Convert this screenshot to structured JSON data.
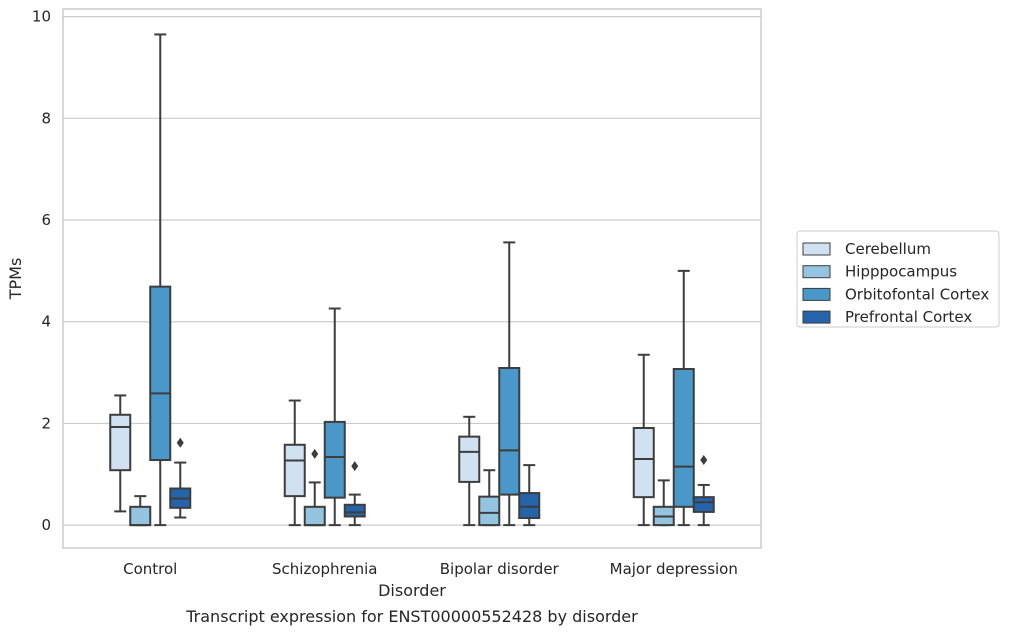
{
  "chart_data": {
    "type": "box",
    "caption": "Transcript expression for ENST00000552428 by disorder",
    "xlabel": "Disorder",
    "ylabel": "TPMs",
    "ylim": [
      -0.45,
      10.15
    ],
    "yticks": [
      0,
      2,
      4,
      6,
      8,
      10
    ],
    "grid": "horizontal",
    "legend_position": "right",
    "categories": [
      "Control",
      "Schizophrenia",
      "Bipolar disorder",
      "Major depression"
    ],
    "series": [
      {
        "name": "Cerebellum",
        "color": "#d0e1f2",
        "boxes": [
          {
            "whislo": 0.27,
            "q1": 1.08,
            "med": 1.93,
            "q3": 2.17,
            "whishi": 2.55,
            "fliers": []
          },
          {
            "whislo": 0.0,
            "q1": 0.57,
            "med": 1.27,
            "q3": 1.58,
            "whishi": 2.45,
            "fliers": []
          },
          {
            "whislo": 0.0,
            "q1": 0.85,
            "med": 1.44,
            "q3": 1.74,
            "whishi": 2.13,
            "fliers": []
          },
          {
            "whislo": 0.0,
            "q1": 0.55,
            "med": 1.3,
            "q3": 1.91,
            "whishi": 3.35,
            "fliers": []
          }
        ]
      },
      {
        "name": "Hipppocampus",
        "color": "#94c4df",
        "boxes": [
          {
            "whislo": 0.0,
            "q1": 0.0,
            "med": 0.0,
            "q3": 0.36,
            "whishi": 0.57,
            "fliers": []
          },
          {
            "whislo": 0.0,
            "q1": 0.0,
            "med": 0.0,
            "q3": 0.36,
            "whishi": 0.84,
            "fliers": [
              1.4
            ]
          },
          {
            "whislo": 0.0,
            "q1": 0.0,
            "med": 0.24,
            "q3": 0.56,
            "whishi": 1.08,
            "fliers": []
          },
          {
            "whislo": 0.0,
            "q1": 0.0,
            "med": 0.17,
            "q3": 0.36,
            "whishi": 0.88,
            "fliers": []
          }
        ]
      },
      {
        "name": "Orbitofontal Cortex",
        "color": "#4a98c9",
        "boxes": [
          {
            "whislo": 0.0,
            "q1": 1.28,
            "med": 2.59,
            "q3": 4.69,
            "whishi": 9.65,
            "fliers": []
          },
          {
            "whislo": 0.0,
            "q1": 0.54,
            "med": 1.34,
            "q3": 2.03,
            "whishi": 4.26,
            "fliers": []
          },
          {
            "whislo": 0.0,
            "q1": 0.6,
            "med": 1.47,
            "q3": 3.09,
            "whishi": 5.56,
            "fliers": []
          },
          {
            "whislo": 0.0,
            "q1": 0.36,
            "med": 1.15,
            "q3": 3.07,
            "whishi": 5.0,
            "fliers": []
          }
        ]
      },
      {
        "name": "Prefrontal Cortex",
        "color": "#2464ab",
        "boxes": [
          {
            "whislo": 0.15,
            "q1": 0.34,
            "med": 0.52,
            "q3": 0.72,
            "whishi": 1.23,
            "fliers": [
              1.62
            ]
          },
          {
            "whislo": 0.0,
            "q1": 0.17,
            "med": 0.25,
            "q3": 0.4,
            "whishi": 0.6,
            "fliers": [
              1.16
            ]
          },
          {
            "whislo": 0.0,
            "q1": 0.14,
            "med": 0.36,
            "q3": 0.63,
            "whishi": 1.18,
            "fliers": []
          },
          {
            "whislo": 0.0,
            "q1": 0.26,
            "med": 0.45,
            "q3": 0.55,
            "whishi": 0.79,
            "fliers": [
              1.28
            ]
          }
        ]
      }
    ]
  }
}
